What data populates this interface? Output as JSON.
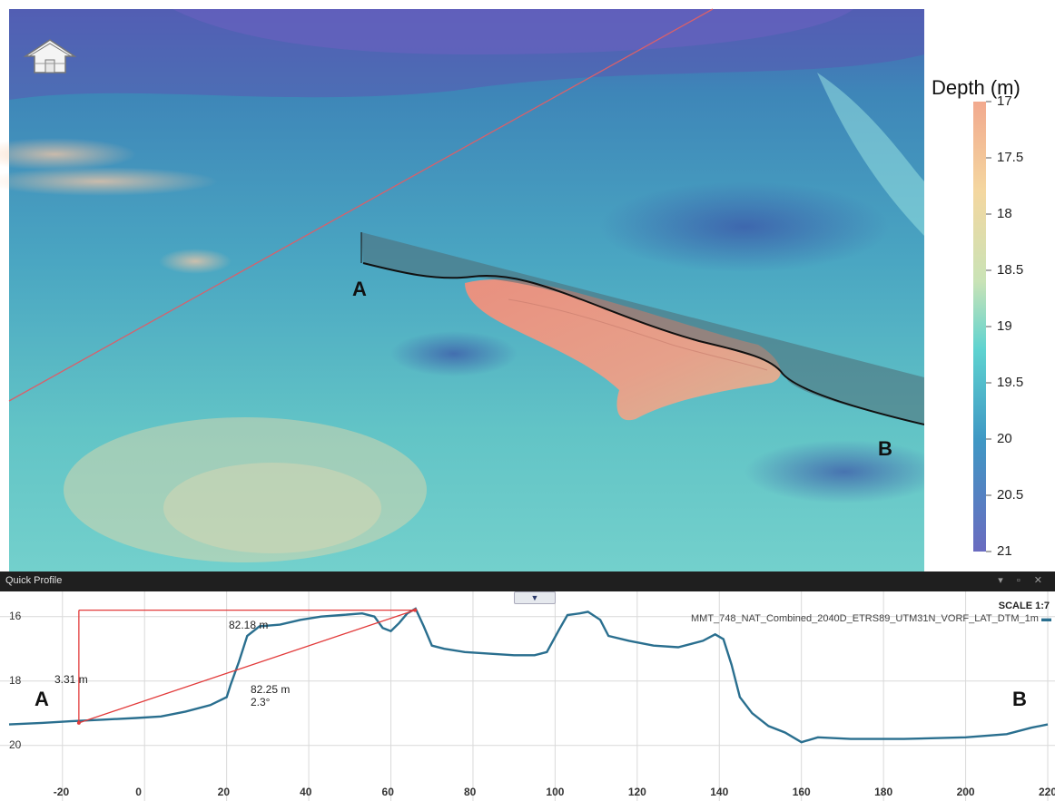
{
  "scene": {
    "label_a": "A",
    "label_b": "B",
    "navigation_icon": "house-navigation-icon"
  },
  "legend": {
    "title": "Depth (m)",
    "ticks": [
      "17",
      "17.5",
      "18",
      "18.5",
      "19",
      "19.5",
      "20",
      "20.5",
      "21"
    ],
    "range": [
      17,
      21
    ],
    "colors": {
      "shallow": "#f2a98e",
      "mid": "#5fd3d0",
      "deep": "#6a6bc0"
    }
  },
  "panel": {
    "title": "Quick Profile",
    "controls": "▾ ▫ ✕",
    "collapse_glyph": "▼",
    "scale": "SCALE 1:7",
    "dataset": "MMT_748_NAT_Combined_2040D_ETRS89_UTM31N_VORF_LAT_DTM_1m",
    "label_a": "A",
    "label_b": "B",
    "measure": {
      "horizontal": "82.18 m",
      "vertical": "3.31 m",
      "slope_length": "82.25 m",
      "slope_angle": "2.3°"
    }
  },
  "chart_data": {
    "type": "line",
    "series_color": "#2a6f8f",
    "xlim": [
      -33,
      220
    ],
    "ylim": [
      20.6,
      15.5
    ],
    "x_ticks": [
      -20,
      0,
      20,
      40,
      60,
      80,
      100,
      120,
      140,
      160,
      180,
      200,
      220
    ],
    "y_ticks": [
      16,
      18,
      20
    ],
    "points": [
      [
        -33,
        19.35
      ],
      [
        -25,
        19.3
      ],
      [
        -18,
        19.25
      ],
      [
        -10,
        19.2
      ],
      [
        -2,
        19.15
      ],
      [
        4,
        19.1
      ],
      [
        10,
        18.95
      ],
      [
        16,
        18.75
      ],
      [
        20,
        18.5
      ],
      [
        21,
        18.1
      ],
      [
        23,
        17.4
      ],
      [
        25,
        16.6
      ],
      [
        28,
        16.3
      ],
      [
        33,
        16.25
      ],
      [
        38,
        16.1
      ],
      [
        43,
        16.0
      ],
      [
        48,
        15.95
      ],
      [
        53,
        15.9
      ],
      [
        56,
        16.0
      ],
      [
        58,
        16.35
      ],
      [
        60,
        16.45
      ],
      [
        62,
        16.2
      ],
      [
        64,
        15.9
      ],
      [
        66,
        15.75
      ],
      [
        68,
        16.3
      ],
      [
        70,
        16.9
      ],
      [
        73,
        17.0
      ],
      [
        78,
        17.1
      ],
      [
        84,
        17.15
      ],
      [
        90,
        17.2
      ],
      [
        95,
        17.2
      ],
      [
        98,
        17.1
      ],
      [
        101,
        16.4
      ],
      [
        103,
        15.95
      ],
      [
        106,
        15.9
      ],
      [
        108,
        15.85
      ],
      [
        111,
        16.1
      ],
      [
        113,
        16.6
      ],
      [
        118,
        16.75
      ],
      [
        124,
        16.9
      ],
      [
        130,
        16.95
      ],
      [
        136,
        16.75
      ],
      [
        139,
        16.55
      ],
      [
        141,
        16.7
      ],
      [
        143,
        17.5
      ],
      [
        145,
        18.5
      ],
      [
        148,
        19.0
      ],
      [
        152,
        19.4
      ],
      [
        156,
        19.6
      ],
      [
        160,
        19.9
      ],
      [
        164,
        19.75
      ],
      [
        172,
        19.8
      ],
      [
        185,
        19.8
      ],
      [
        200,
        19.75
      ],
      [
        210,
        19.65
      ],
      [
        216,
        19.45
      ],
      [
        220,
        19.35
      ]
    ],
    "measure_from": [
      -16,
      19.3
    ],
    "measure_to": [
      65.9,
      15.8
    ]
  }
}
